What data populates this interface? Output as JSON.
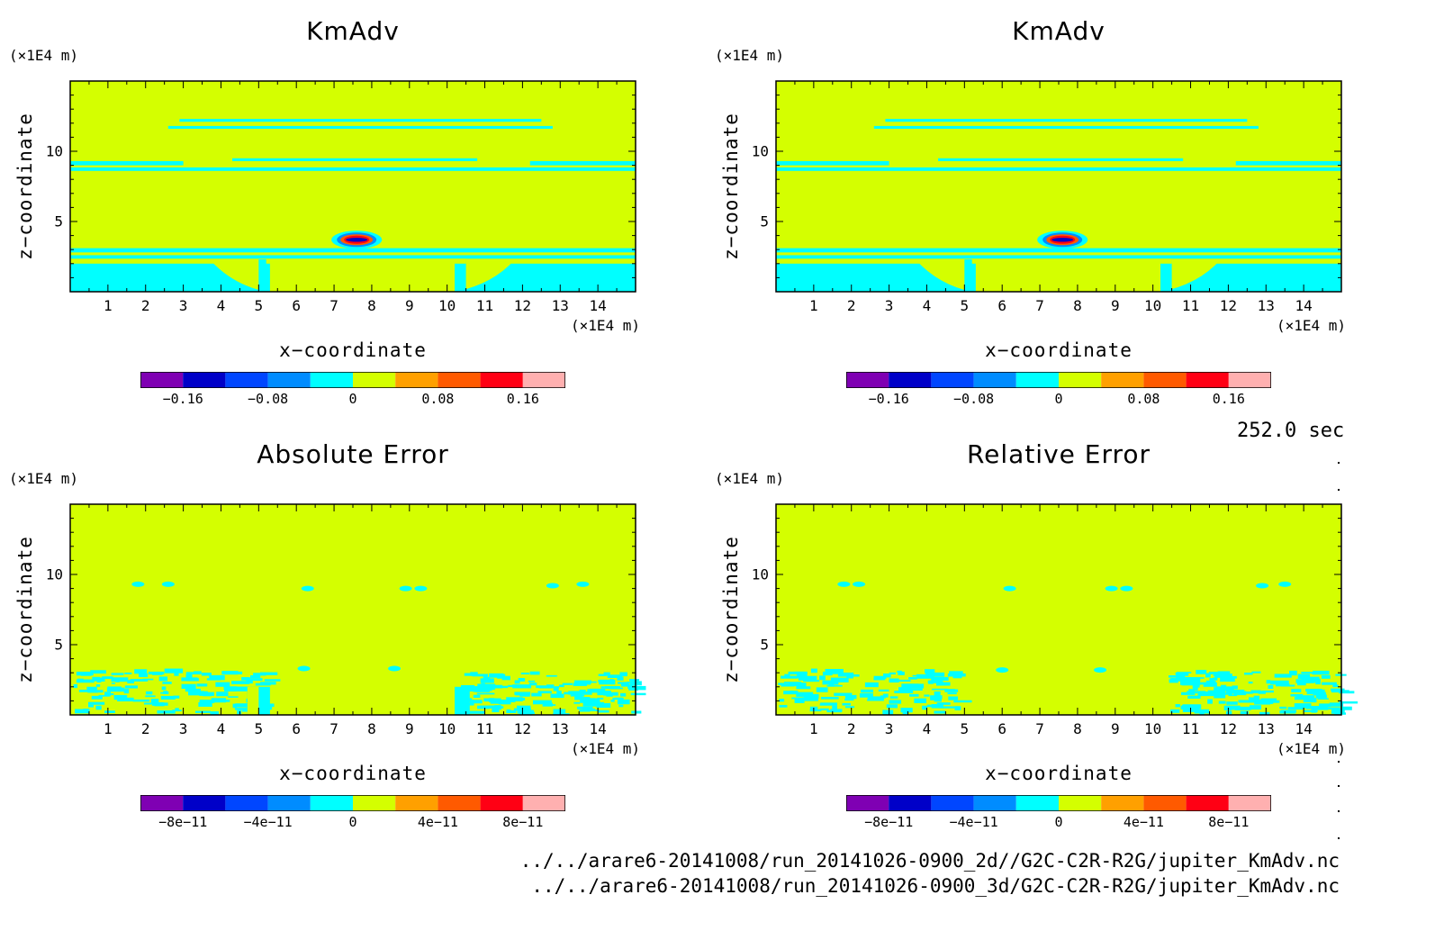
{
  "figure": {
    "time_label": "252.0 sec",
    "files": [
      "../../arare6-20141008/run_20141026-0900_2d//G2C-C2R-R2G/jupiter_KmAdv.nc",
      "../../arare6-20141008/run_20141026-0900_3d/G2C-C2R-R2G/jupiter_KmAdv.nc"
    ]
  },
  "colors": {
    "background_level": "#d4ff00",
    "cyan_level": "#00ffff",
    "frame": "#000000"
  },
  "chart_data": [
    {
      "type": "heatmap",
      "title": "KmAdv",
      "xlabel": "x−coordinate",
      "ylabel": "z−coordinate",
      "x_unit": "(×1E4 m)",
      "y_unit": "(×1E4 m)",
      "xlim": [
        0,
        15
      ],
      "ylim": [
        0,
        15
      ],
      "x_ticks": [
        "1",
        "2",
        "3",
        "4",
        "5",
        "6",
        "7",
        "8",
        "9",
        "10",
        "11",
        "12",
        "13",
        "14"
      ],
      "y_ticks": [
        "5",
        "10"
      ],
      "colorbar": {
        "levels": 10,
        "colors": [
          "#7f00b3",
          "#0000c8",
          "#0046ff",
          "#008cff",
          "#00ffff",
          "#d4ff00",
          "#ffa000",
          "#ff5a00",
          "#ff0014",
          "#ffb0b0"
        ],
        "tick_labels": [
          "−0.16",
          "−0.08",
          "0",
          "0.08",
          "0.16"
        ],
        "tick_values": [
          -0.16,
          -0.08,
          0,
          0.08,
          0.16
        ]
      }
    },
    {
      "type": "heatmap",
      "title": "KmAdv",
      "xlabel": "x−coordinate",
      "ylabel": "z−coordinate",
      "x_unit": "(×1E4 m)",
      "y_unit": "(×1E4 m)",
      "xlim": [
        0,
        15
      ],
      "ylim": [
        0,
        15
      ],
      "x_ticks": [
        "1",
        "2",
        "3",
        "4",
        "5",
        "6",
        "7",
        "8",
        "9",
        "10",
        "11",
        "12",
        "13",
        "14"
      ],
      "y_ticks": [
        "5",
        "10"
      ],
      "colorbar": {
        "levels": 10,
        "colors": [
          "#7f00b3",
          "#0000c8",
          "#0046ff",
          "#008cff",
          "#00ffff",
          "#d4ff00",
          "#ffa000",
          "#ff5a00",
          "#ff0014",
          "#ffb0b0"
        ],
        "tick_labels": [
          "−0.16",
          "−0.08",
          "0",
          "0.08",
          "0.16"
        ],
        "tick_values": [
          -0.16,
          -0.08,
          0,
          0.08,
          0.16
        ]
      }
    },
    {
      "type": "heatmap",
      "title": "Absolute Error",
      "xlabel": "x−coordinate",
      "ylabel": "z−coordinate",
      "x_unit": "(×1E4 m)",
      "y_unit": "(×1E4 m)",
      "xlim": [
        0,
        15
      ],
      "ylim": [
        0,
        15
      ],
      "x_ticks": [
        "1",
        "2",
        "3",
        "4",
        "5",
        "6",
        "7",
        "8",
        "9",
        "10",
        "11",
        "12",
        "13",
        "14"
      ],
      "y_ticks": [
        "5",
        "10"
      ],
      "colorbar": {
        "levels": 10,
        "colors": [
          "#7f00b3",
          "#0000c8",
          "#0046ff",
          "#008cff",
          "#00ffff",
          "#d4ff00",
          "#ffa000",
          "#ff5a00",
          "#ff0014",
          "#ffb0b0"
        ],
        "tick_labels": [
          "−8e−11",
          "−4e−11",
          "0",
          "4e−11",
          "8e−11"
        ],
        "tick_values": [
          -8e-11,
          -4e-11,
          0,
          4e-11,
          8e-11
        ]
      }
    },
    {
      "type": "heatmap",
      "title": "Relative Error",
      "xlabel": "x−coordinate",
      "ylabel": "z−coordinate",
      "x_unit": "(×1E4 m)",
      "y_unit": "(×1E4 m)",
      "xlim": [
        0,
        15
      ],
      "ylim": [
        0,
        15
      ],
      "x_ticks": [
        "1",
        "2",
        "3",
        "4",
        "5",
        "6",
        "7",
        "8",
        "9",
        "10",
        "11",
        "12",
        "13",
        "14"
      ],
      "y_ticks": [
        "5",
        "10"
      ],
      "colorbar": {
        "levels": 10,
        "colors": [
          "#7f00b3",
          "#0000c8",
          "#0046ff",
          "#008cff",
          "#00ffff",
          "#d4ff00",
          "#ffa000",
          "#ff5a00",
          "#ff0014",
          "#ffb0b0"
        ],
        "tick_labels": [
          "−8e−11",
          "−4e−11",
          "0",
          "4e−11",
          "8e−11"
        ],
        "tick_values": [
          -8e-11,
          -4e-11,
          0,
          4e-11,
          8e-11
        ]
      }
    }
  ]
}
